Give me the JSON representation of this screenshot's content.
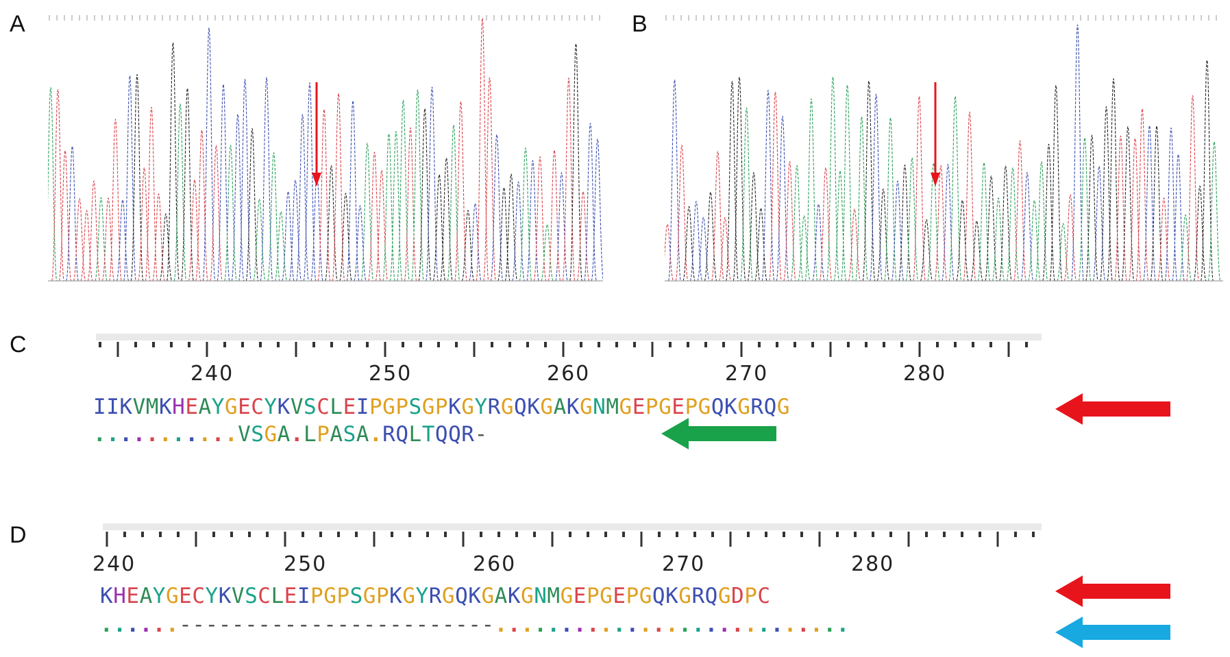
{
  "panels": {
    "a": {
      "label": "A"
    },
    "b": {
      "label": "B"
    },
    "c": {
      "label": "C",
      "ticks": [
        "240",
        "250",
        "260",
        "270",
        "280"
      ],
      "seq1": "IIKVMKHEAYGECYKVSCLEIPGPSGPKGYRGQKGAKGNMGEPGEPGQKGRQG",
      "seq2": "...........VSGA.LPASA.RQLTQQR-"
    },
    "d": {
      "label": "D",
      "ticks": [
        "240",
        "250",
        "260",
        "270",
        "280"
      ],
      "seq1": "KHEAYGECYKVSCLEIPGPSGPKGYRGQKGAKGNMGEPGEPGQKGRQGDPC",
      "seq2": "......------------------------..........................."
    }
  },
  "colors": {
    "trace_a": "#2ca05a",
    "trace_c": "#3c4fb0",
    "trace_g": "#222222",
    "trace_t": "#d9434b",
    "arrow_red": "#e8141c",
    "arrow_green": "#1aa24a",
    "arrow_blue": "#18a9e0"
  }
}
